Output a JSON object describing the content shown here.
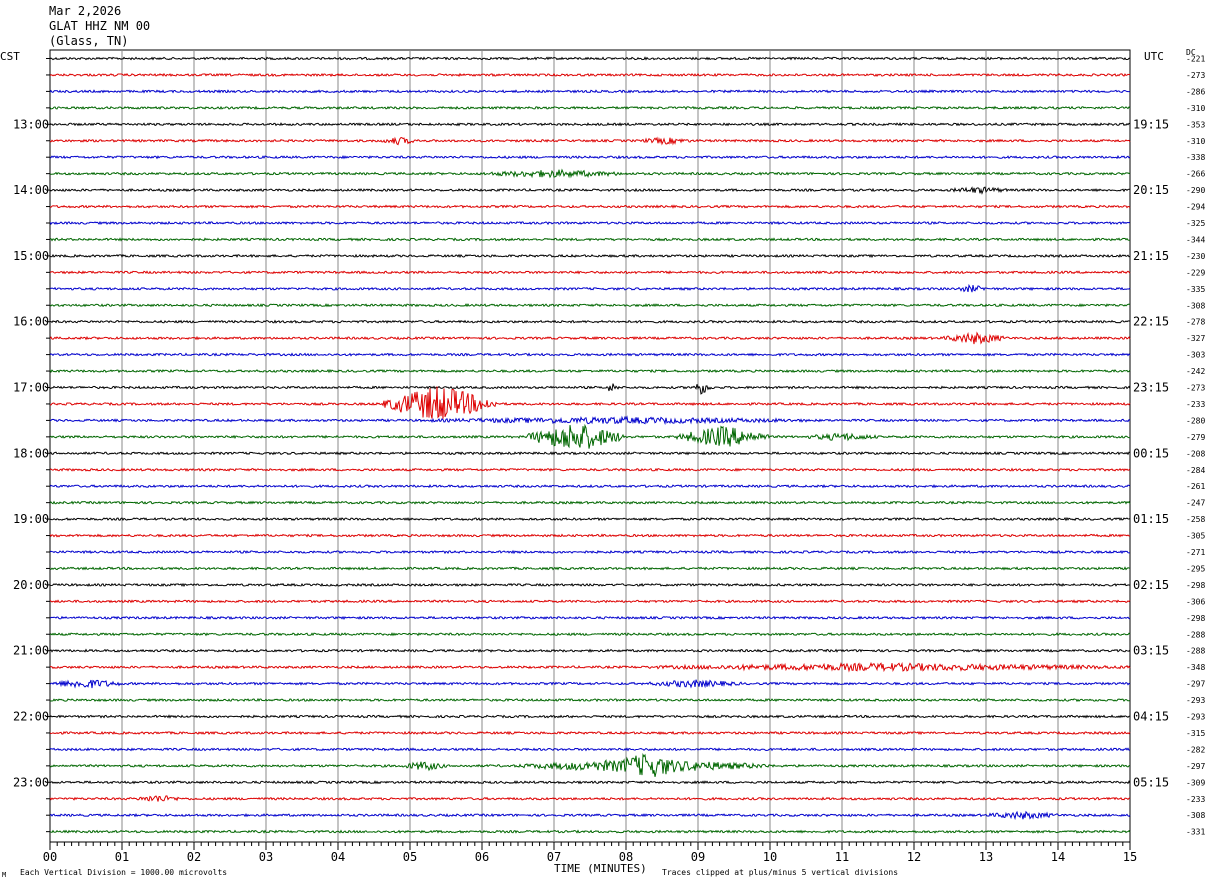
{
  "header": {
    "date": "Mar 2,2026",
    "station": "GLAT HHZ NM 00",
    "location": "(Glass, TN)"
  },
  "left_tz": "CST",
  "right_tz": "UTC",
  "dc_label": "DC",
  "footer": {
    "scale": "Each Vertical Division = 1000.00 microvolts",
    "clip": "Traces clipped at plus/minus 5 vertical divisions",
    "logo": "M"
  },
  "chart_data": {
    "type": "line",
    "xlabel": "TIME (MINUTES)",
    "xlim": [
      0,
      15
    ],
    "x_ticks": [
      "00",
      "01",
      "02",
      "03",
      "04",
      "05",
      "06",
      "07",
      "08",
      "09",
      "10",
      "11",
      "12",
      "13",
      "14",
      "15"
    ],
    "trace_colors": [
      "#000000",
      "#dd0000",
      "#0000cc",
      "#006600"
    ],
    "trace_minutes": 15,
    "left_hour_labels": [
      "13:00",
      "14:00",
      "15:00",
      "16:00",
      "17:00",
      "18:00",
      "19:00",
      "20:00",
      "21:00",
      "22:00",
      "23:00"
    ],
    "right_hour_labels": [
      "19:15",
      "20:15",
      "21:15",
      "22:15",
      "23:15",
      "00:15",
      "01:15",
      "02:15",
      "03:15",
      "04:15",
      "05:15"
    ],
    "hour_label_first_trace": 4,
    "dc_offsets": [
      -221,
      -273,
      -286,
      -310,
      -353,
      -310,
      -338,
      -266,
      -290,
      -294,
      -325,
      -344,
      -230,
      -229,
      -335,
      -308,
      -278,
      -327,
      -303,
      -242,
      -273,
      -233,
      -280,
      -279,
      -208,
      -284,
      -261,
      -247,
      -258,
      -305,
      -271,
      -295,
      -298,
      -306,
      -298,
      -288,
      -288,
      -348,
      -297,
      -293,
      -293,
      -315,
      -282,
      -297,
      -309,
      -233,
      -308,
      -331
    ],
    "events": [
      {
        "trace": 5,
        "start_min": 4.6,
        "end_min": 5.1,
        "amp": 3
      },
      {
        "trace": 5,
        "start_min": 8.2,
        "end_min": 8.9,
        "amp": 2.5
      },
      {
        "trace": 7,
        "start_min": 6.0,
        "end_min": 8.0,
        "amp": 3
      },
      {
        "trace": 8,
        "start_min": 12.5,
        "end_min": 13.3,
        "amp": 2.5
      },
      {
        "trace": 14,
        "start_min": 12.6,
        "end_min": 13.0,
        "amp": 3
      },
      {
        "trace": 17,
        "start_min": 12.4,
        "end_min": 13.3,
        "amp": 5
      },
      {
        "trace": 20,
        "start_min": 7.7,
        "end_min": 7.9,
        "amp": 4
      },
      {
        "trace": 20,
        "start_min": 8.9,
        "end_min": 9.2,
        "amp": 6
      },
      {
        "trace": 21,
        "start_min": 4.6,
        "end_min": 6.2,
        "amp": 18
      },
      {
        "trace": 22,
        "start_min": 5.2,
        "end_min": 10.5,
        "amp": 2.5
      },
      {
        "trace": 23,
        "start_min": 6.6,
        "end_min": 8.0,
        "amp": 14
      },
      {
        "trace": 23,
        "start_min": 8.7,
        "end_min": 10.0,
        "amp": 10
      },
      {
        "trace": 23,
        "start_min": 10.5,
        "end_min": 11.5,
        "amp": 3
      },
      {
        "trace": 37,
        "start_min": 8.3,
        "end_min": 15.0,
        "amp": 3
      },
      {
        "trace": 38,
        "start_min": 0.0,
        "end_min": 1.0,
        "amp": 4
      },
      {
        "trace": 38,
        "start_min": 8.3,
        "end_min": 9.6,
        "amp": 3
      },
      {
        "trace": 43,
        "start_min": 4.9,
        "end_min": 5.5,
        "amp": 4
      },
      {
        "trace": 43,
        "start_min": 6.5,
        "end_min": 10.0,
        "amp": 6
      },
      {
        "trace": 43,
        "start_min": 7.7,
        "end_min": 8.9,
        "amp": 12
      },
      {
        "trace": 45,
        "start_min": 1.2,
        "end_min": 1.8,
        "amp": 3
      },
      {
        "trace": 46,
        "start_min": 13.0,
        "end_min": 14.0,
        "amp": 3
      }
    ]
  }
}
